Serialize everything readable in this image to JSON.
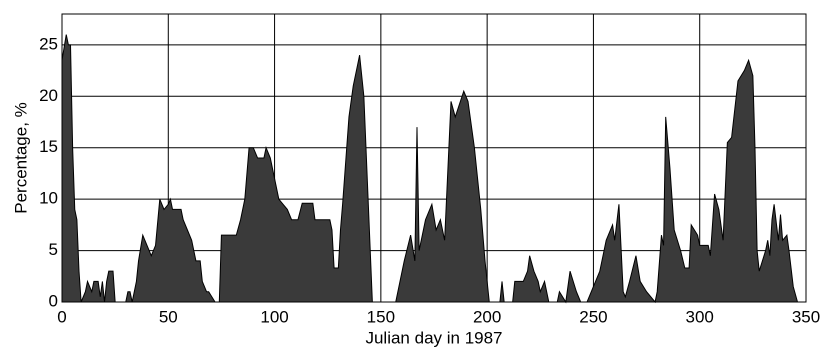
{
  "chart_data": {
    "type": "area",
    "x_label": "Julian day in 1987",
    "y_label": "Percentage, %",
    "color": "#3a3a3a",
    "grid": true,
    "xlim": [
      0,
      350
    ],
    "ylim": [
      0,
      28
    ],
    "xticks": [
      0,
      50,
      100,
      150,
      200,
      250,
      300,
      350
    ],
    "yticks": [
      0,
      5,
      10,
      15,
      20,
      25
    ],
    "x": [
      0,
      2,
      3,
      4,
      5,
      6,
      7,
      8,
      9,
      11,
      12,
      14,
      15,
      17,
      18,
      19,
      20,
      21,
      22,
      24,
      25,
      30,
      31,
      32,
      33,
      34,
      35,
      36,
      38,
      39,
      41,
      42,
      44,
      46,
      48,
      50,
      51,
      52,
      54,
      56,
      57,
      59,
      61,
      63,
      65,
      66,
      68,
      69,
      72,
      74,
      75,
      82,
      84,
      86,
      88,
      90,
      92,
      95,
      96,
      98,
      100,
      102,
      104,
      106,
      108,
      111,
      113,
      118,
      119,
      126,
      127,
      128,
      130,
      131,
      132,
      135,
      137,
      139,
      140,
      142,
      144,
      146,
      157,
      161,
      164,
      166,
      167,
      168,
      171,
      174,
      176,
      178,
      180,
      183,
      185,
      189,
      191,
      194,
      197,
      199,
      201,
      206,
      207,
      208,
      212,
      213,
      217,
      219,
      220,
      222,
      224,
      225,
      227,
      229,
      233,
      234,
      237,
      239,
      242,
      244,
      247,
      249,
      253,
      256,
      259,
      260,
      262,
      264,
      265,
      267,
      270,
      272,
      275,
      279,
      280,
      282,
      283,
      284,
      286,
      288,
      291,
      293,
      295,
      296,
      299,
      300,
      304,
      305,
      307,
      309,
      311,
      313,
      315,
      318,
      321,
      323,
      325,
      326,
      327,
      328,
      331,
      332,
      333,
      334,
      335,
      337,
      338,
      339,
      341,
      342,
      344,
      346
    ],
    "values": [
      23.5,
      26,
      25,
      25,
      15,
      9,
      8,
      3,
      0,
      1,
      2,
      1,
      2,
      2,
      0.5,
      2,
      0,
      2,
      3,
      3,
      0,
      0,
      1,
      1,
      0,
      1,
      2,
      4,
      6.5,
      6,
      5,
      4.5,
      5.5,
      10,
      9,
      9.5,
      10,
      9,
      9,
      9,
      8,
      7,
      6,
      4,
      4,
      2,
      1,
      1,
      0,
      0,
      6.5,
      6.5,
      8,
      10,
      15,
      15,
      14,
      14,
      15,
      14,
      12,
      10,
      9.5,
      9,
      8,
      8,
      9.6,
      9.6,
      8,
      8,
      7,
      3.3,
      3.3,
      7,
      9.5,
      18,
      21,
      23,
      24,
      20,
      10,
      0,
      0,
      4,
      6.5,
      4,
      17,
      5,
      8,
      9.5,
      7,
      8,
      6,
      19.5,
      18,
      20.5,
      19.5,
      15,
      9,
      4,
      0,
      0,
      2,
      0,
      0,
      2,
      2,
      3,
      4.5,
      3,
      2,
      1,
      2,
      0,
      0,
      1,
      0,
      3,
      1,
      0,
      0,
      1,
      3,
      6,
      7.5,
      6,
      9.5,
      1,
      0.5,
      2,
      4.5,
      2,
      1,
      0,
      1,
      6.5,
      5.5,
      18,
      13,
      7,
      5,
      3.3,
      3.3,
      7.5,
      6.5,
      5.5,
      5.5,
      4.5,
      10.5,
      9,
      6,
      15.5,
      16,
      21.5,
      22.5,
      23.5,
      22,
      15,
      5,
      3,
      5,
      6,
      4.5,
      8,
      9.5,
      6,
      8.5,
      6,
      6.5,
      5,
      1.5,
      0
    ]
  }
}
